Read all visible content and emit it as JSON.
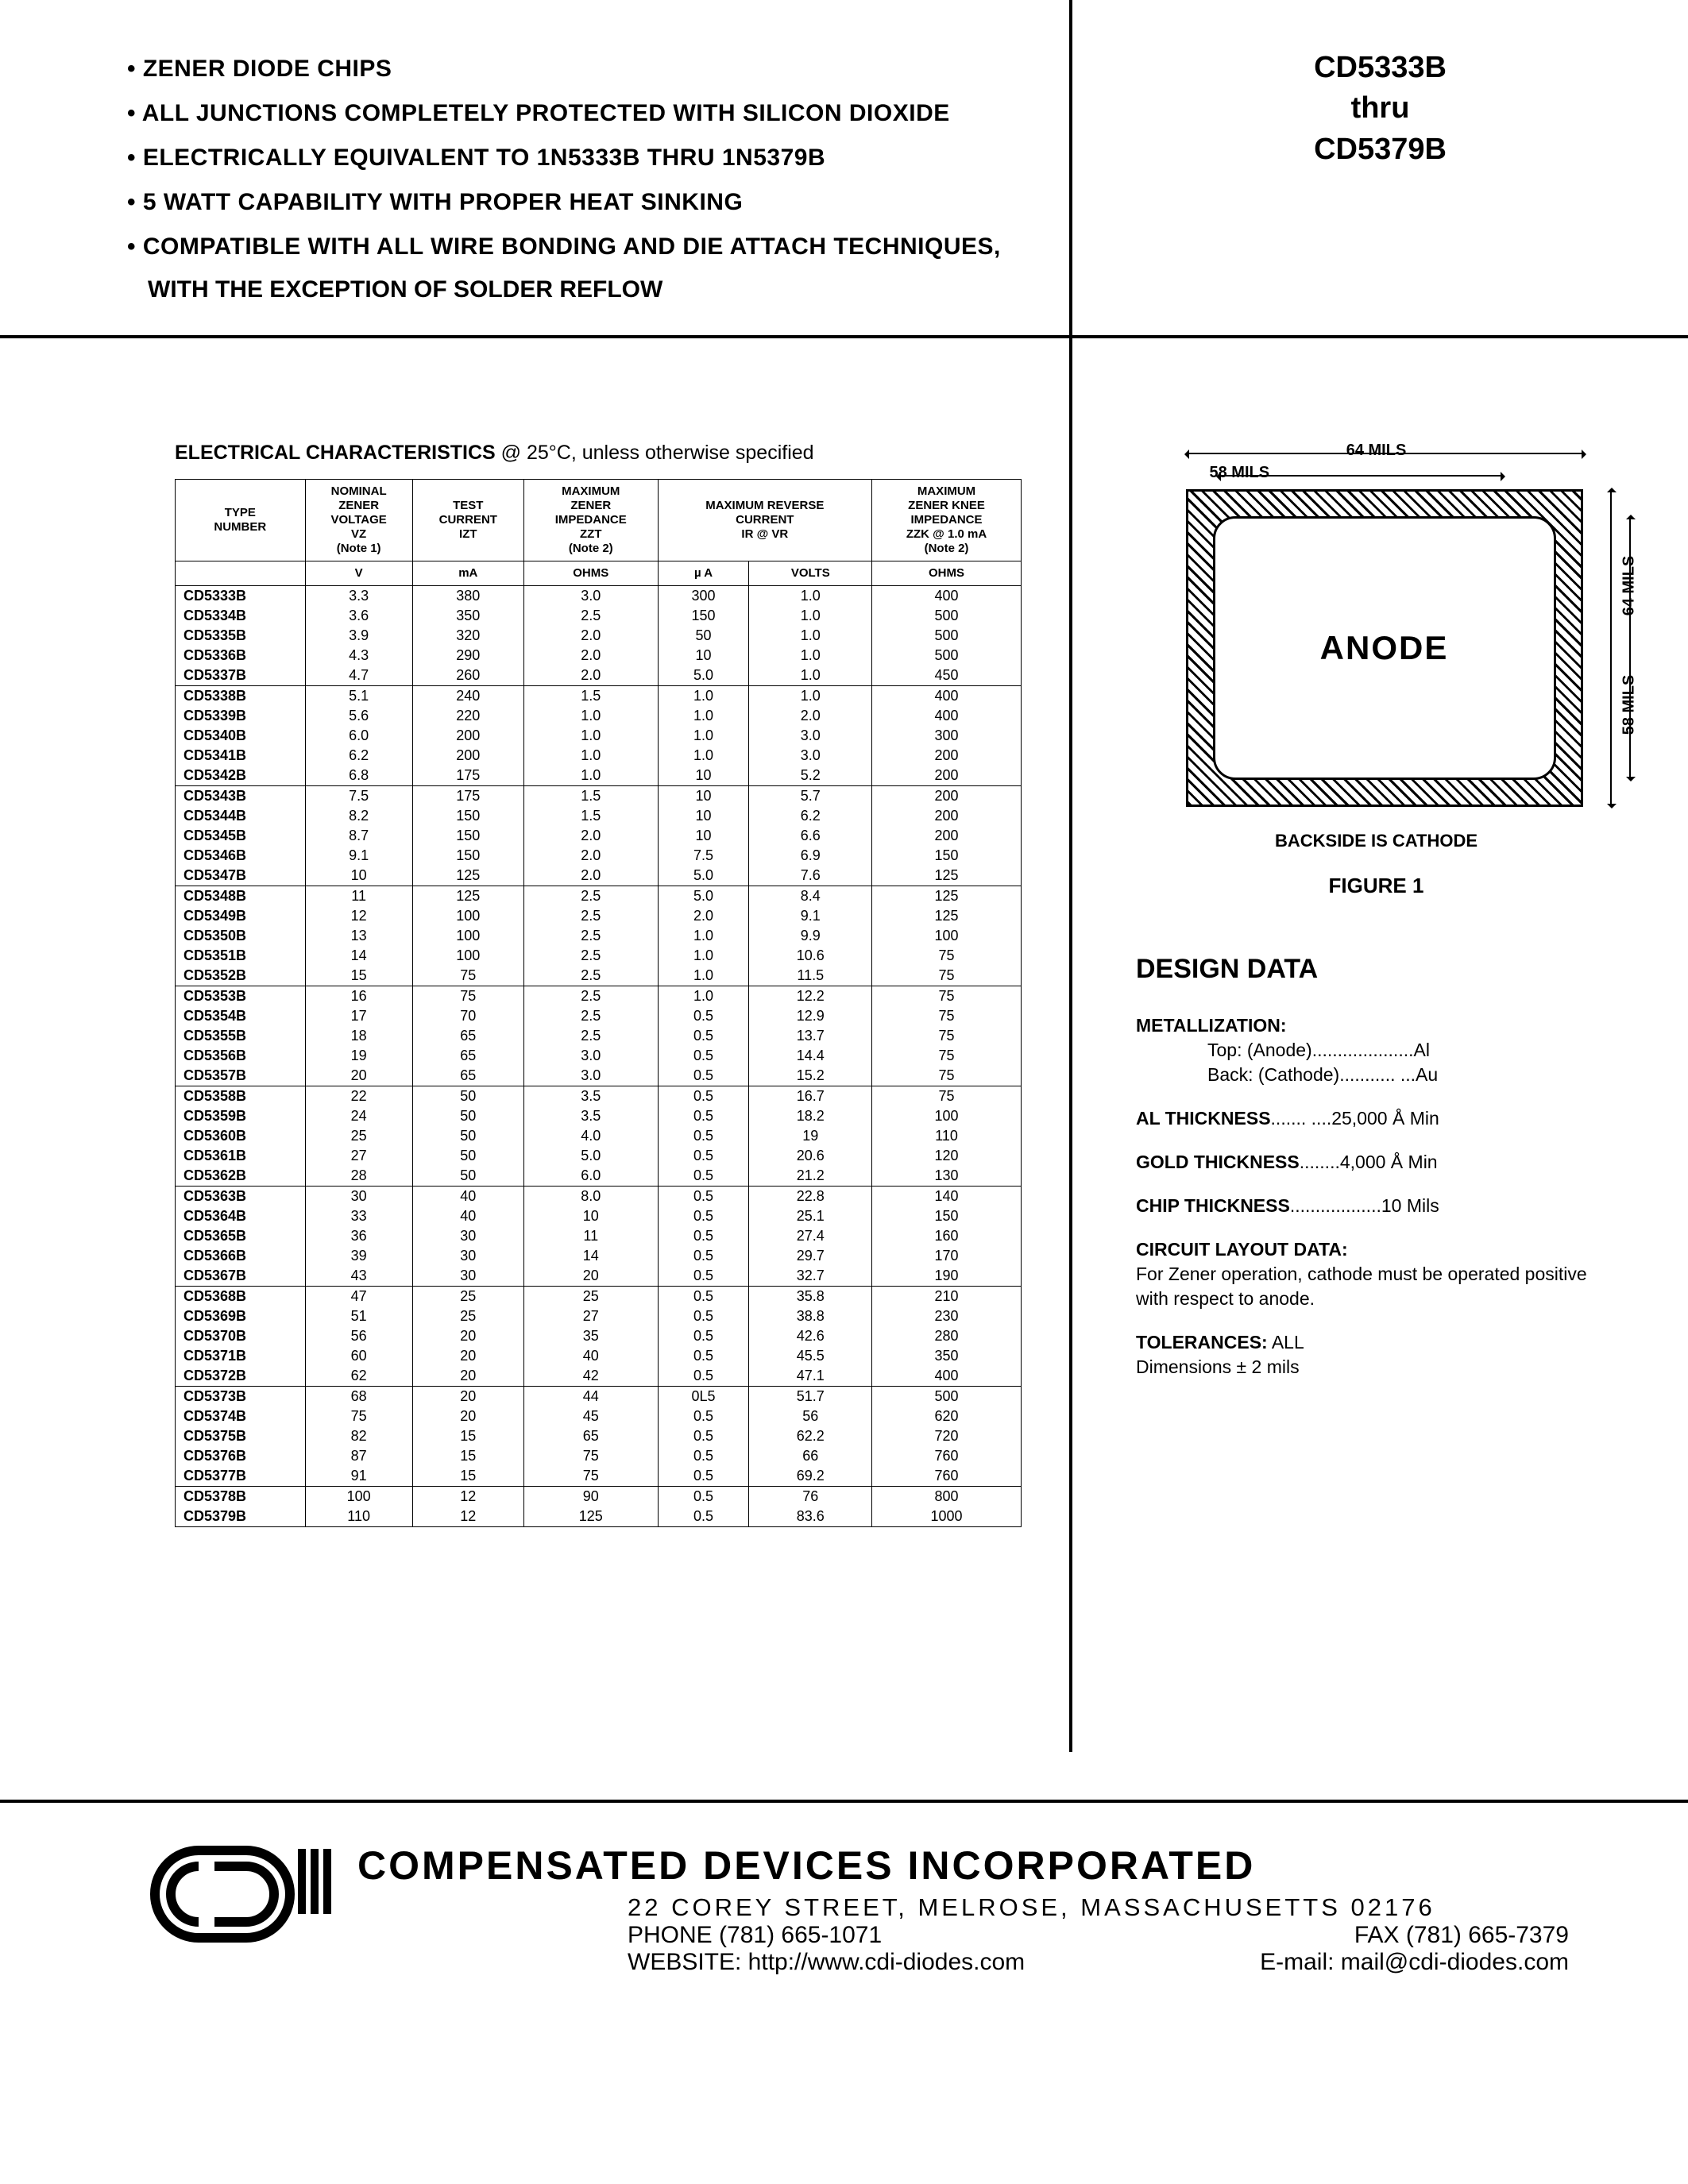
{
  "features": [
    "ZENER DIODE CHIPS",
    "ALL JUNCTIONS COMPLETELY PROTECTED WITH SILICON DIOXIDE",
    "ELECTRICALLY EQUIVALENT TO 1N5333B THRU 1N5379B",
    "5 WATT CAPABILITY WITH PROPER HEAT SINKING",
    "COMPATIBLE WITH ALL WIRE BONDING AND DIE ATTACH TECHNIQUES,"
  ],
  "feature_sub": "WITH THE EXCEPTION OF SOLDER REFLOW",
  "part_range": {
    "from": "CD5333B",
    "thru": "thru",
    "to": "CD5379B"
  },
  "ec_title_bold": "ELECTRICAL CHARACTERISTICS",
  "ec_title_rest": " @ 25°C, unless otherwise specified",
  "table": {
    "headers": {
      "type": "TYPE\nNUMBER",
      "vz": "NOMINAL\nZENER\nVOLTAGE\nVZ\n(Note 1)",
      "izt": "TEST\nCURRENT\nIZT",
      "zzt": "MAXIMUM\nZENER\nIMPEDANCE\nZZT\n(Note 2)",
      "rev": "MAXIMUM REVERSE\nCURRENT\nIR @ VR",
      "zzk": "MAXIMUM\nZENER KNEE\nIMPEDANCE\nZZK @ 1.0 mA\n(Note 2)"
    },
    "units": [
      "",
      "V",
      "mA",
      "OHMS",
      "µ A",
      "VOLTS",
      "OHMS"
    ],
    "groups": [
      [
        [
          "CD5333B",
          "3.3",
          "380",
          "3.0",
          "300",
          "1.0",
          "400"
        ],
        [
          "CD5334B",
          "3.6",
          "350",
          "2.5",
          "150",
          "1.0",
          "500"
        ],
        [
          "CD5335B",
          "3.9",
          "320",
          "2.0",
          "50",
          "1.0",
          "500"
        ],
        [
          "CD5336B",
          "4.3",
          "290",
          "2.0",
          "10",
          "1.0",
          "500"
        ],
        [
          "CD5337B",
          "4.7",
          "260",
          "2.0",
          "5.0",
          "1.0",
          "450"
        ]
      ],
      [
        [
          "CD5338B",
          "5.1",
          "240",
          "1.5",
          "1.0",
          "1.0",
          "400"
        ],
        [
          "CD5339B",
          "5.6",
          "220",
          "1.0",
          "1.0",
          "2.0",
          "400"
        ],
        [
          "CD5340B",
          "6.0",
          "200",
          "1.0",
          "1.0",
          "3.0",
          "300"
        ],
        [
          "CD5341B",
          "6.2",
          "200",
          "1.0",
          "1.0",
          "3.0",
          "200"
        ],
        [
          "CD5342B",
          "6.8",
          "175",
          "1.0",
          "10",
          "5.2",
          "200"
        ]
      ],
      [
        [
          "CD5343B",
          "7.5",
          "175",
          "1.5",
          "10",
          "5.7",
          "200"
        ],
        [
          "CD5344B",
          "8.2",
          "150",
          "1.5",
          "10",
          "6.2",
          "200"
        ],
        [
          "CD5345B",
          "8.7",
          "150",
          "2.0",
          "10",
          "6.6",
          "200"
        ],
        [
          "CD5346B",
          "9.1",
          "150",
          "2.0",
          "7.5",
          "6.9",
          "150"
        ],
        [
          "CD5347B",
          "10",
          "125",
          "2.0",
          "5.0",
          "7.6",
          "125"
        ]
      ],
      [
        [
          "CD5348B",
          "11",
          "125",
          "2.5",
          "5.0",
          "8.4",
          "125"
        ],
        [
          "CD5349B",
          "12",
          "100",
          "2.5",
          "2.0",
          "9.1",
          "125"
        ],
        [
          "CD5350B",
          "13",
          "100",
          "2.5",
          "1.0",
          "9.9",
          "100"
        ],
        [
          "CD5351B",
          "14",
          "100",
          "2.5",
          "1.0",
          "10.6",
          "75"
        ],
        [
          "CD5352B",
          "15",
          "75",
          "2.5",
          "1.0",
          "11.5",
          "75"
        ]
      ],
      [
        [
          "CD5353B",
          "16",
          "75",
          "2.5",
          "1.0",
          "12.2",
          "75"
        ],
        [
          "CD5354B",
          "17",
          "70",
          "2.5",
          "0.5",
          "12.9",
          "75"
        ],
        [
          "CD5355B",
          "18",
          "65",
          "2.5",
          "0.5",
          "13.7",
          "75"
        ],
        [
          "CD5356B",
          "19",
          "65",
          "3.0",
          "0.5",
          "14.4",
          "75"
        ],
        [
          "CD5357B",
          "20",
          "65",
          "3.0",
          "0.5",
          "15.2",
          "75"
        ]
      ],
      [
        [
          "CD5358B",
          "22",
          "50",
          "3.5",
          "0.5",
          "16.7",
          "75"
        ],
        [
          "CD5359B",
          "24",
          "50",
          "3.5",
          "0.5",
          "18.2",
          "100"
        ],
        [
          "CD5360B",
          "25",
          "50",
          "4.0",
          "0.5",
          "19",
          "110"
        ],
        [
          "CD5361B",
          "27",
          "50",
          "5.0",
          "0.5",
          "20.6",
          "120"
        ],
        [
          "CD5362B",
          "28",
          "50",
          "6.0",
          "0.5",
          "21.2",
          "130"
        ]
      ],
      [
        [
          "CD5363B",
          "30",
          "40",
          "8.0",
          "0.5",
          "22.8",
          "140"
        ],
        [
          "CD5364B",
          "33",
          "40",
          "10",
          "0.5",
          "25.1",
          "150"
        ],
        [
          "CD5365B",
          "36",
          "30",
          "11",
          "0.5",
          "27.4",
          "160"
        ],
        [
          "CD5366B",
          "39",
          "30",
          "14",
          "0.5",
          "29.7",
          "170"
        ],
        [
          "CD5367B",
          "43",
          "30",
          "20",
          "0.5",
          "32.7",
          "190"
        ]
      ],
      [
        [
          "CD5368B",
          "47",
          "25",
          "25",
          "0.5",
          "35.8",
          "210"
        ],
        [
          "CD5369B",
          "51",
          "25",
          "27",
          "0.5",
          "38.8",
          "230"
        ],
        [
          "CD5370B",
          "56",
          "20",
          "35",
          "0.5",
          "42.6",
          "280"
        ],
        [
          "CD5371B",
          "60",
          "20",
          "40",
          "0.5",
          "45.5",
          "350"
        ],
        [
          "CD5372B",
          "62",
          "20",
          "42",
          "0.5",
          "47.1",
          "400"
        ]
      ],
      [
        [
          "CD5373B",
          "68",
          "20",
          "44",
          "0L5",
          "51.7",
          "500"
        ],
        [
          "CD5374B",
          "75",
          "20",
          "45",
          "0.5",
          "56",
          "620"
        ],
        [
          "CD5375B",
          "82",
          "15",
          "65",
          "0.5",
          "62.2",
          "720"
        ],
        [
          "CD5376B",
          "87",
          "15",
          "75",
          "0.5",
          "66",
          "760"
        ],
        [
          "CD5377B",
          "91",
          "15",
          "75",
          "0.5",
          "69.2",
          "760"
        ]
      ],
      [
        [
          "CD5378B",
          "100",
          "12",
          "90",
          "0.5",
          "76",
          "800"
        ],
        [
          "CD5379B",
          "110",
          "12",
          "125",
          "0.5",
          "83.6",
          "1000"
        ]
      ]
    ]
  },
  "figure": {
    "dim_outer": "64 MILS",
    "dim_inner": "58 MILS",
    "dim_h_outer": "64 MILS",
    "dim_h_inner": "58 MILS",
    "anode": "ANODE",
    "backside": "BACKSIDE IS CATHODE",
    "title": "FIGURE 1"
  },
  "design_data": {
    "title": "DESIGN DATA",
    "metallization_label": "METALLIZATION:",
    "metal_top": "Top: (Anode)....................Al",
    "metal_back": "Back: (Cathode)........... ...Au",
    "al_thick_label": "AL THICKNESS",
    "al_thick_val": "....... ....25,000 Å Min",
    "gold_thick_label": "GOLD THICKNESS",
    "gold_thick_val": "........4,000 Å Min",
    "chip_thick_label": "CHIP THICKNESS",
    "chip_thick_val": "..................10 Mils",
    "circuit_label": "CIRCUIT LAYOUT DATA:",
    "circuit_text": "For Zener operation, cathode must be operated positive with respect to anode.",
    "tol_label": "TOLERANCES:",
    "tol_val": " ALL",
    "tol_dim": "Dimensions ± 2 mils"
  },
  "footer": {
    "company": "COMPENSATED DEVICES INCORPORATED",
    "address": "22 COREY STREET, MELROSE, MASSACHUSETTS 02176",
    "phone": "PHONE (781) 665-1071",
    "fax": "FAX (781) 665-7379",
    "website": "WEBSITE:  http://www.cdi-diodes.com",
    "email": "E-mail: mail@cdi-diodes.com"
  },
  "colors": {
    "text": "#000000",
    "bg": "#ffffff"
  }
}
